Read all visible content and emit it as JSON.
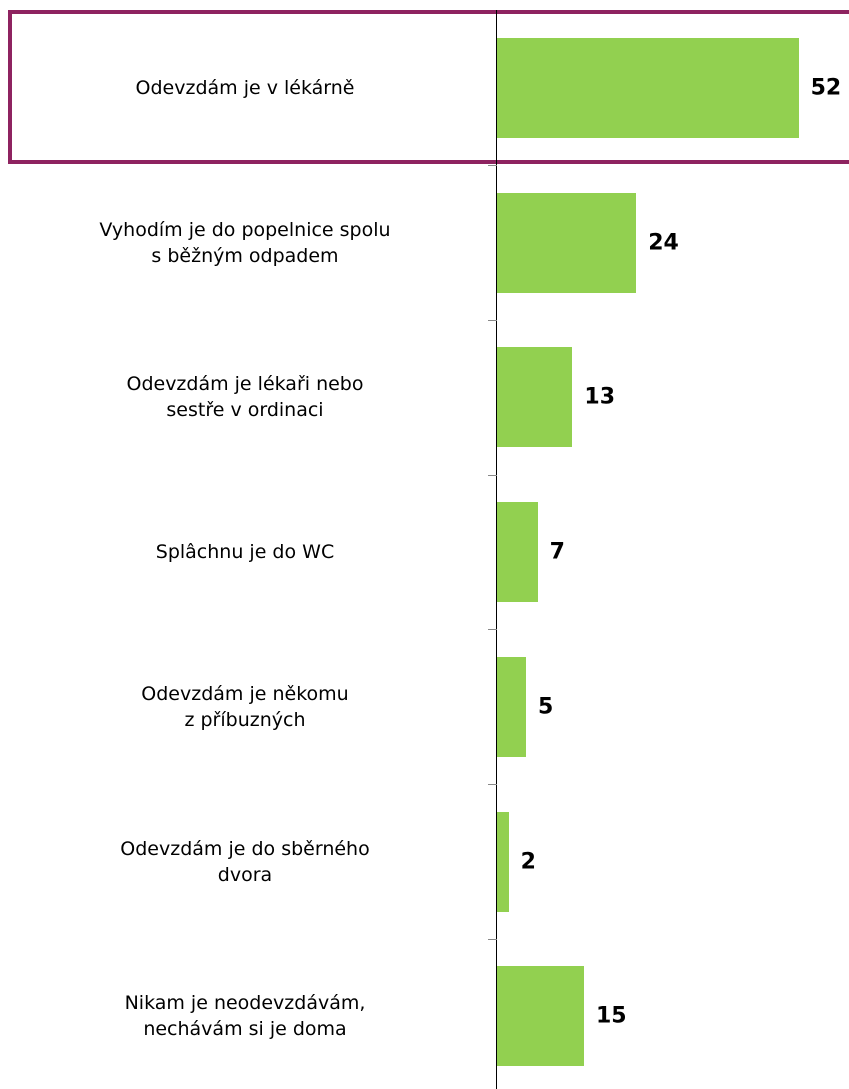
{
  "chart_data": {
    "type": "bar",
    "orientation": "horizontal",
    "categories": [
      "Odevzdám je v lékárně",
      "Vyhodím je do popelnice spolu\ns běžným odpadem",
      "Odevzdám je lékaři nebo\nsestře v ordinaci",
      "Splâchnu je do WC",
      "Odevzdám je někomu\nz příbuzných",
      "Odevzdám je do sběrného\ndvora",
      "Nikam je neodevzdávám,\nnechávám si je doma"
    ],
    "values": [
      52,
      24,
      13,
      7,
      5,
      2,
      15
    ],
    "color": "#92d050"
  }
}
